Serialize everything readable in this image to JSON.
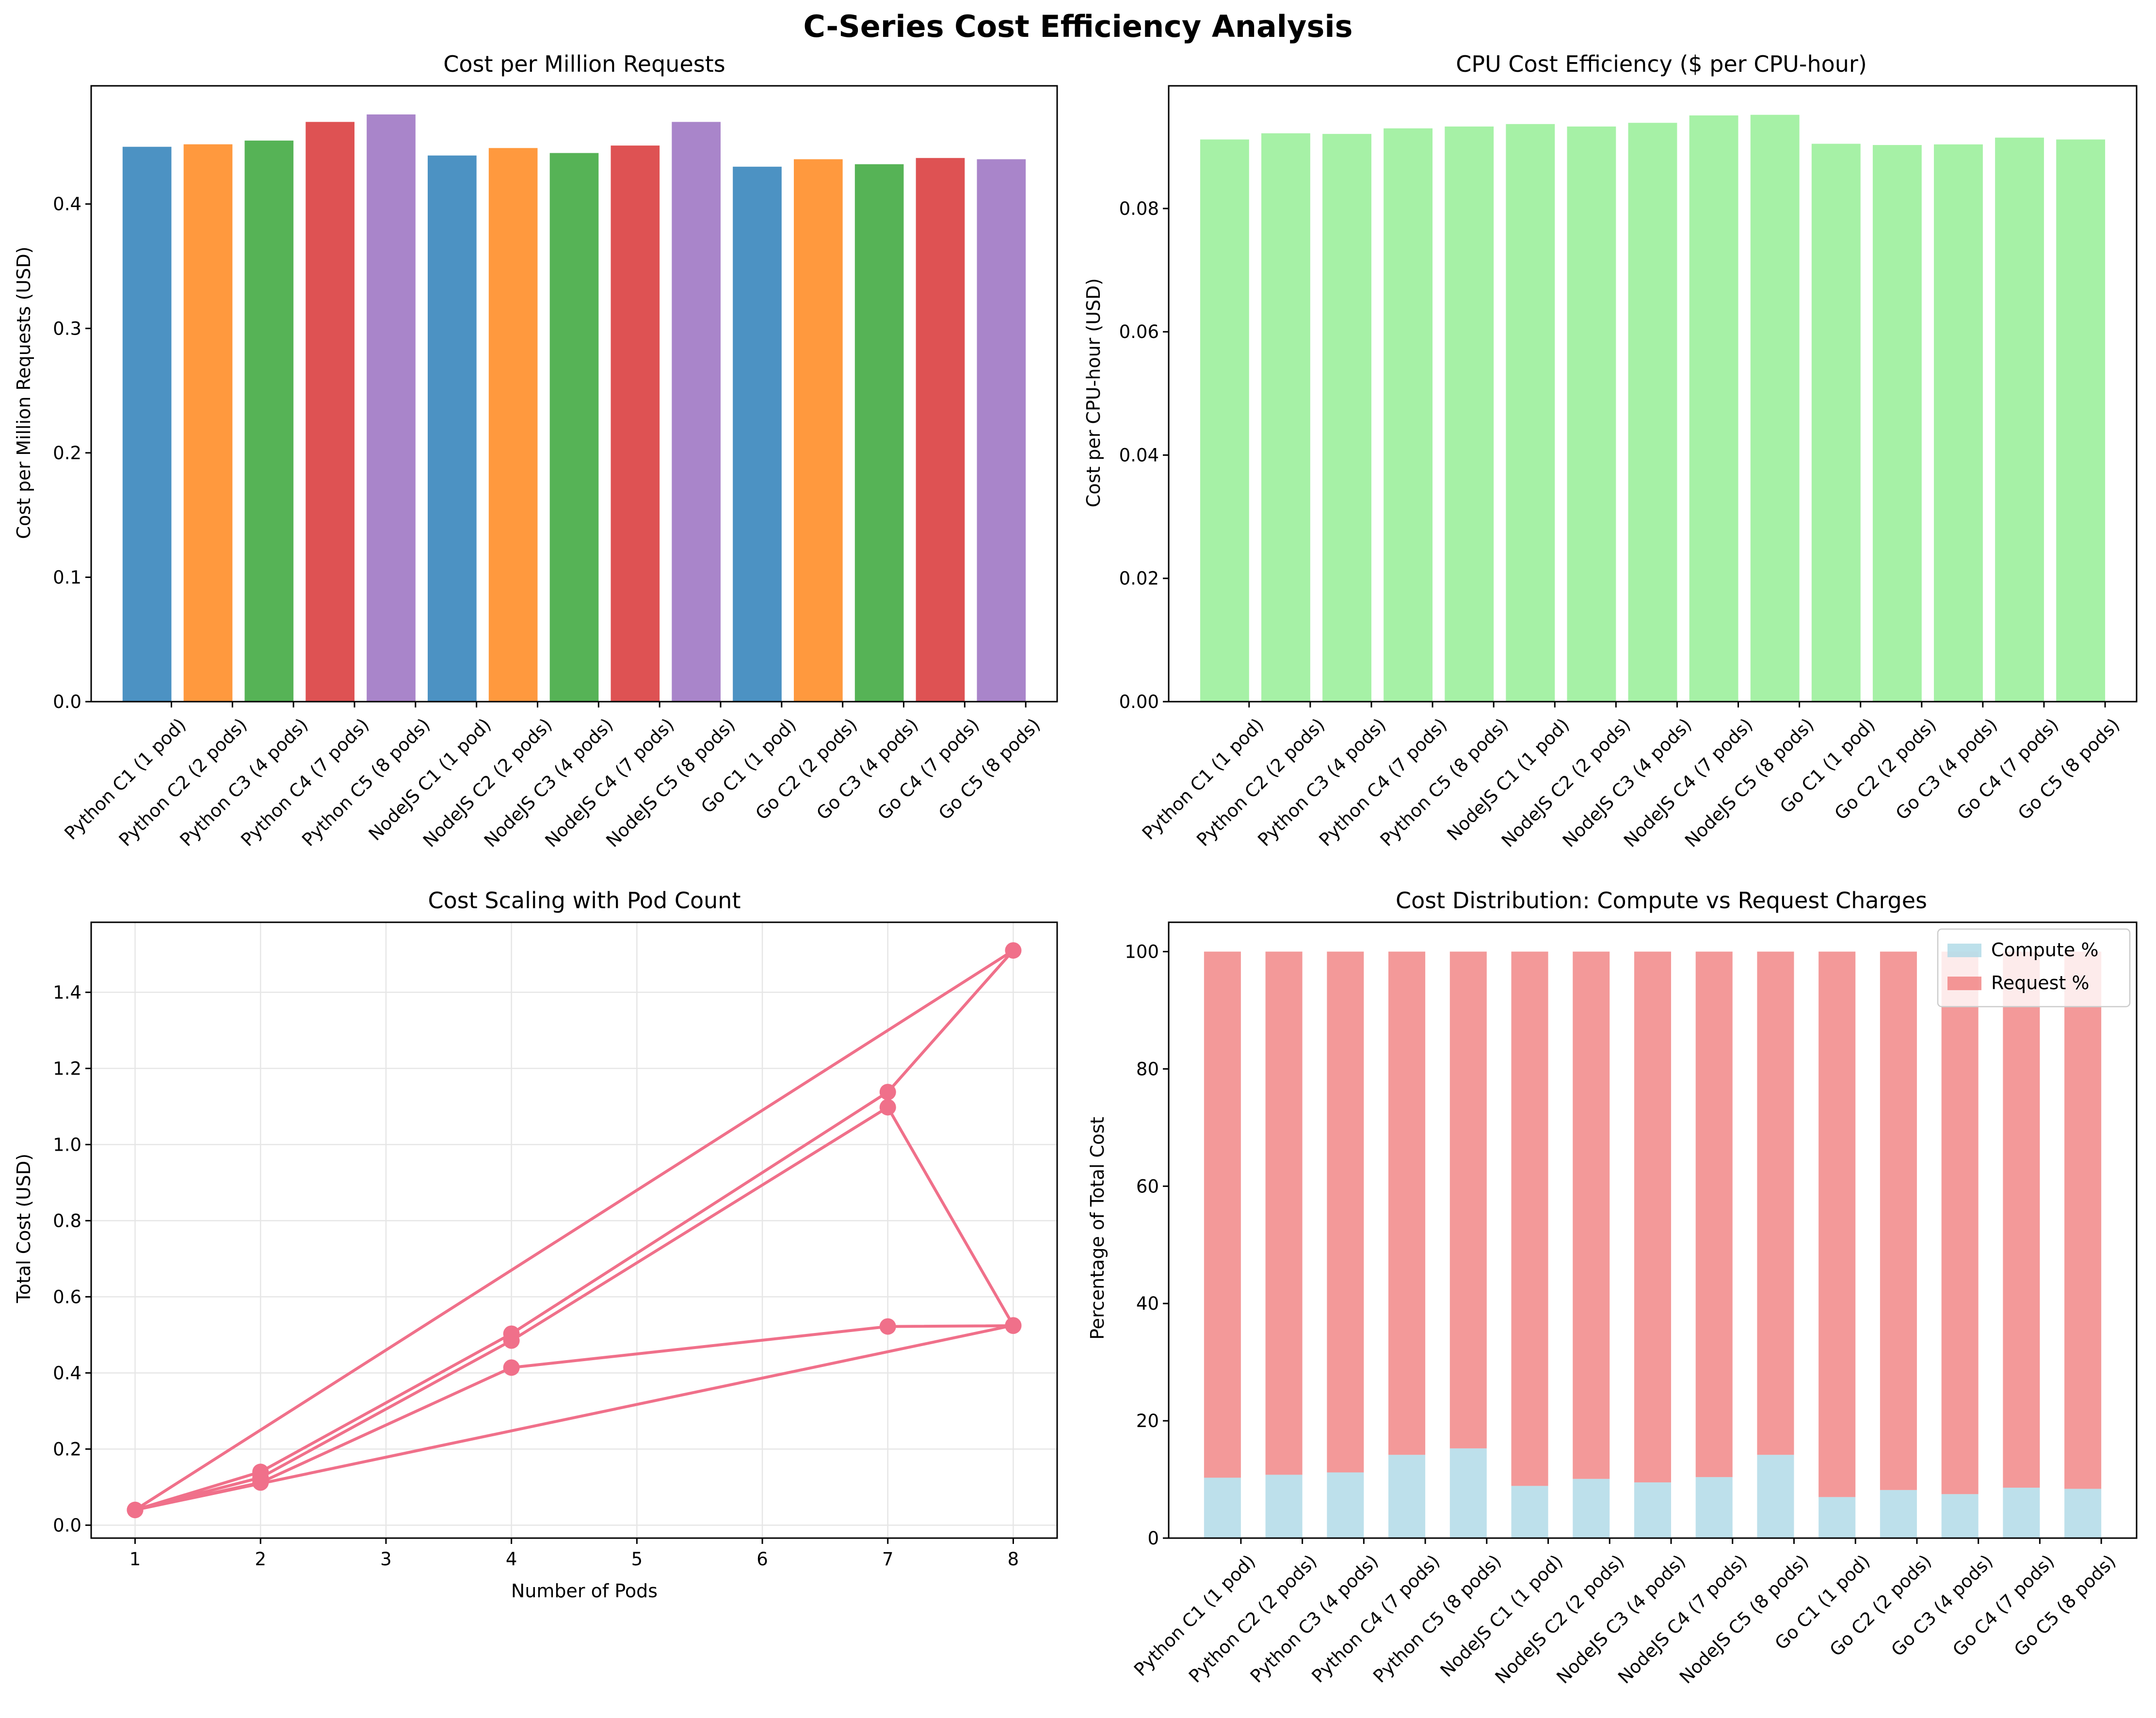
{
  "figure": {
    "title": "C-Series Cost Efficiency Analysis"
  },
  "colors": {
    "cycle": [
      "#1f77b4",
      "#ff7f0e",
      "#2ca02c",
      "#d62728",
      "#9467bd"
    ],
    "light_green": "#90ee90",
    "line_pink": "#f0708a",
    "light_blue": "#add8e6",
    "light_coral": "#f08080",
    "grid": "#e6e6e6"
  },
  "chart_data": [
    {
      "type": "bar",
      "title": "Cost per Million Requests",
      "xlabel": "",
      "ylabel": "Cost per Million Requests (USD)",
      "categories": [
        "Python C1 (1 pod)",
        "Python C2 (2 pods)",
        "Python C3 (4 pods)",
        "Python C4 (7 pods)",
        "Python C5 (8 pods)",
        "NodeJS C1 (1 pod)",
        "NodeJS C2 (2 pods)",
        "NodeJS C3 (4 pods)",
        "NodeJS C4 (7 pods)",
        "NodeJS C5 (8 pods)",
        "Go C1 (1 pod)",
        "Go C2 (2 pods)",
        "Go C3 (4 pods)",
        "Go C4 (7 pods)",
        "Go C5 (8 pods)"
      ],
      "values": [
        0.446,
        0.448,
        0.451,
        0.466,
        0.472,
        0.439,
        0.445,
        0.441,
        0.447,
        0.466,
        0.43,
        0.436,
        0.432,
        0.437,
        0.436
      ],
      "ylim": [
        0,
        0.495
      ],
      "yticks": [
        0.0,
        0.1,
        0.2,
        0.3,
        0.4
      ],
      "ytick_labels": [
        "0.0",
        "0.1",
        "0.2",
        "0.3",
        "0.4"
      ],
      "grid": false,
      "bar_colors": "cycle by config (C1–C5)"
    },
    {
      "type": "bar",
      "title": "CPU Cost Efficiency ($ per CPU-hour)",
      "xlabel": "",
      "ylabel": "Cost per CPU-hour (USD)",
      "categories": [
        "Python C1 (1 pod)",
        "Python C2 (2 pods)",
        "Python C3 (4 pods)",
        "Python C4 (7 pods)",
        "Python C5 (8 pods)",
        "NodeJS C1 (1 pod)",
        "NodeJS C2 (2 pods)",
        "NodeJS C3 (4 pods)",
        "NodeJS C4 (7 pods)",
        "NodeJS C5 (8 pods)",
        "Go C1 (1 pod)",
        "Go C2 (2 pods)",
        "Go C3 (4 pods)",
        "Go C4 (7 pods)",
        "Go C5 (8 pods)"
      ],
      "values": [
        0.0912,
        0.0922,
        0.0921,
        0.093,
        0.0933,
        0.0937,
        0.0933,
        0.0939,
        0.0951,
        0.0952,
        0.0905,
        0.0903,
        0.0904,
        0.0915,
        0.0912
      ],
      "ylim": [
        0,
        0.0999
      ],
      "yticks": [
        0.0,
        0.02,
        0.04,
        0.06,
        0.08
      ],
      "ytick_labels": [
        "0.00",
        "0.02",
        "0.04",
        "0.06",
        "0.08"
      ],
      "grid": false
    },
    {
      "type": "line",
      "title": "Cost Scaling with Pod Count",
      "xlabel": "Number of Pods",
      "ylabel": "Total Cost (USD)",
      "x": [
        1,
        2,
        4,
        7,
        8,
        1,
        2,
        4,
        7,
        8,
        1,
        2,
        4,
        7,
        8
      ],
      "y": [
        0.04,
        0.14,
        0.503,
        1.138,
        1.51,
        0.04,
        0.125,
        0.485,
        1.098,
        0.525,
        0.04,
        0.112,
        0.414,
        0.522,
        0.524
      ],
      "xlim": [
        0.65,
        8.35
      ],
      "ylim": [
        -0.034,
        1.584
      ],
      "xticks": [
        1,
        2,
        3,
        4,
        5,
        6,
        7,
        8
      ],
      "xtick_labels": [
        "1",
        "2",
        "3",
        "4",
        "5",
        "6",
        "7",
        "8"
      ],
      "yticks": [
        0.0,
        0.2,
        0.4,
        0.6,
        0.8,
        1.0,
        1.2,
        1.4
      ],
      "ytick_labels": [
        "0.0",
        "0.2",
        "0.4",
        "0.6",
        "0.8",
        "1.0",
        "1.2",
        "1.4"
      ],
      "grid": true
    },
    {
      "type": "bar",
      "stacked": true,
      "title": "Cost Distribution: Compute vs Request Charges",
      "xlabel": "",
      "ylabel": "Percentage of Total Cost",
      "categories": [
        "Python C1 (1 pod)",
        "Python C2 (2 pods)",
        "Python C3 (4 pods)",
        "Python C4 (7 pods)",
        "Python C5 (8 pods)",
        "NodeJS C1 (1 pod)",
        "NodeJS C2 (2 pods)",
        "NodeJS C3 (4 pods)",
        "NodeJS C4 (7 pods)",
        "NodeJS C5 (8 pods)",
        "Go C1 (1 pod)",
        "Go C2 (2 pods)",
        "Go C3 (4 pods)",
        "Go C4 (7 pods)",
        "Go C5 (8 pods)"
      ],
      "series": [
        {
          "name": "Compute %",
          "values": [
            10.3,
            10.8,
            11.2,
            14.2,
            15.3,
            8.9,
            10.1,
            9.5,
            10.4,
            14.2,
            7.0,
            8.2,
            7.5,
            8.6,
            8.4
          ]
        },
        {
          "name": "Request %",
          "values": [
            89.7,
            89.2,
            88.8,
            85.8,
            84.7,
            91.1,
            89.9,
            90.5,
            89.6,
            85.8,
            93.0,
            91.8,
            92.5,
            91.4,
            91.6
          ]
        }
      ],
      "ylim": [
        0,
        105
      ],
      "yticks": [
        0,
        20,
        40,
        60,
        80,
        100
      ],
      "ytick_labels": [
        "0",
        "20",
        "40",
        "60",
        "80",
        "100"
      ],
      "legend": "top-right",
      "grid": false
    }
  ]
}
